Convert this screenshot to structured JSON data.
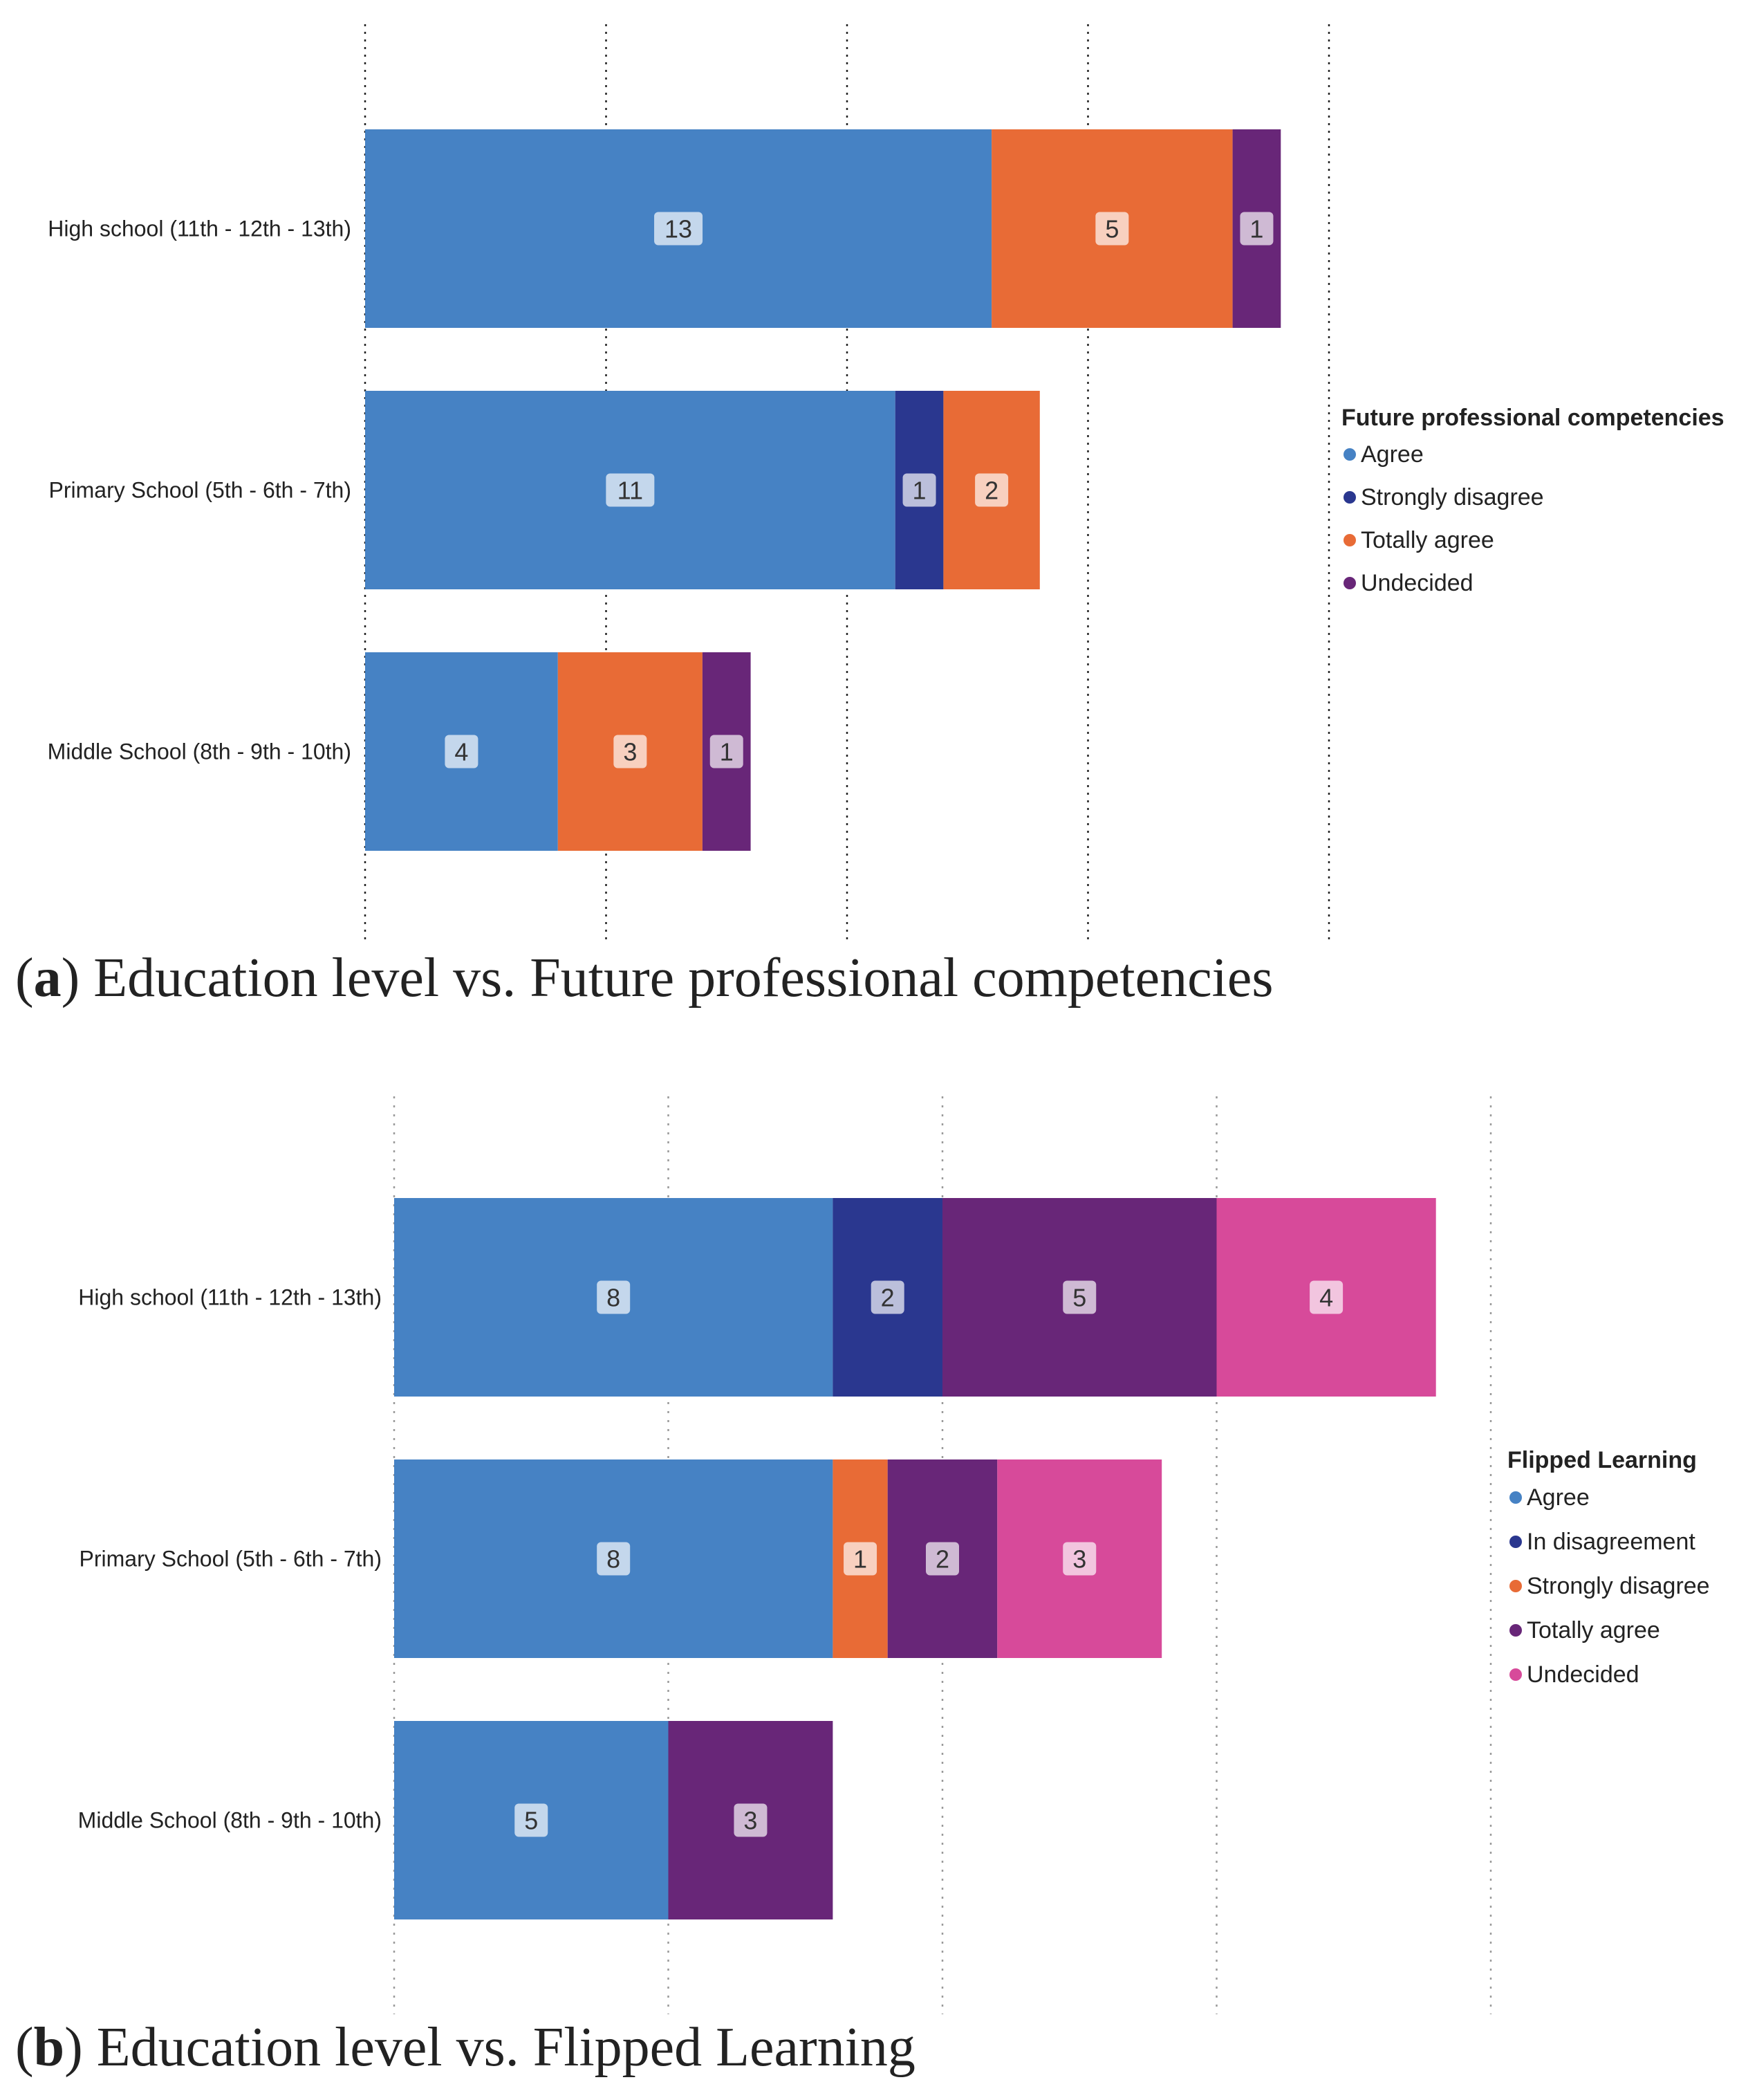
{
  "chart_data": [
    {
      "type": "bar",
      "orientation": "horizontal",
      "stacked": true,
      "caption_letter": "a",
      "caption_text": ") Education level vs. Future professional competencies",
      "categories": [
        "High school (11th - 12th - 13th)",
        "Primary School (5th - 6th - 7th)",
        "Middle School (8th - 9th - 10th)"
      ],
      "series": [
        {
          "name": "Agree",
          "color": "#4682C4",
          "values": [
            13,
            11,
            4
          ]
        },
        {
          "name": "Strongly disagree",
          "color": "#2A378F",
          "values": [
            0,
            1,
            0
          ]
        },
        {
          "name": "Totally agree",
          "color": "#E86B36",
          "values": [
            5,
            2,
            3
          ]
        },
        {
          "name": "Undecided",
          "color": "#682678",
          "values": [
            1,
            0,
            1
          ]
        }
      ],
      "stack_order": [
        [
          "Agree",
          "Totally agree",
          "Undecided"
        ],
        [
          "Agree",
          "Strongly disagree",
          "Totally agree"
        ],
        [
          "Agree",
          "Totally agree",
          "Undecided"
        ]
      ],
      "xlim": [
        0,
        20
      ],
      "grid_step": 5,
      "legend_title": "Future professional competencies",
      "legend_position": "right"
    },
    {
      "type": "bar",
      "orientation": "horizontal",
      "stacked": true,
      "caption_letter": "b",
      "caption_text": ") Education level vs. Flipped Learning",
      "categories": [
        "High school (11th - 12th - 13th)",
        "Primary School (5th - 6th - 7th)",
        "Middle School (8th - 9th - 10th)"
      ],
      "series": [
        {
          "name": "Agree",
          "color": "#4682C4",
          "values": [
            8,
            8,
            5
          ]
        },
        {
          "name": "In disagreement",
          "color": "#2A378F",
          "values": [
            2,
            0,
            0
          ]
        },
        {
          "name": "Strongly disagree",
          "color": "#E86B36",
          "values": [
            0,
            1,
            0
          ]
        },
        {
          "name": "Totally agree",
          "color": "#682678",
          "values": [
            5,
            2,
            3
          ]
        },
        {
          "name": "Undecided",
          "color": "#D74A9A",
          "values": [
            4,
            3,
            0
          ]
        }
      ],
      "stack_order": [
        [
          "Agree",
          "In disagreement",
          "Totally agree",
          "Undecided"
        ],
        [
          "Agree",
          "Strongly disagree",
          "Totally agree",
          "Undecided"
        ],
        [
          "Agree",
          "Totally agree"
        ]
      ],
      "xlim": [
        0,
        20
      ],
      "grid_step": 5,
      "legend_title": "Flipped Learning",
      "legend_position": "right"
    }
  ]
}
